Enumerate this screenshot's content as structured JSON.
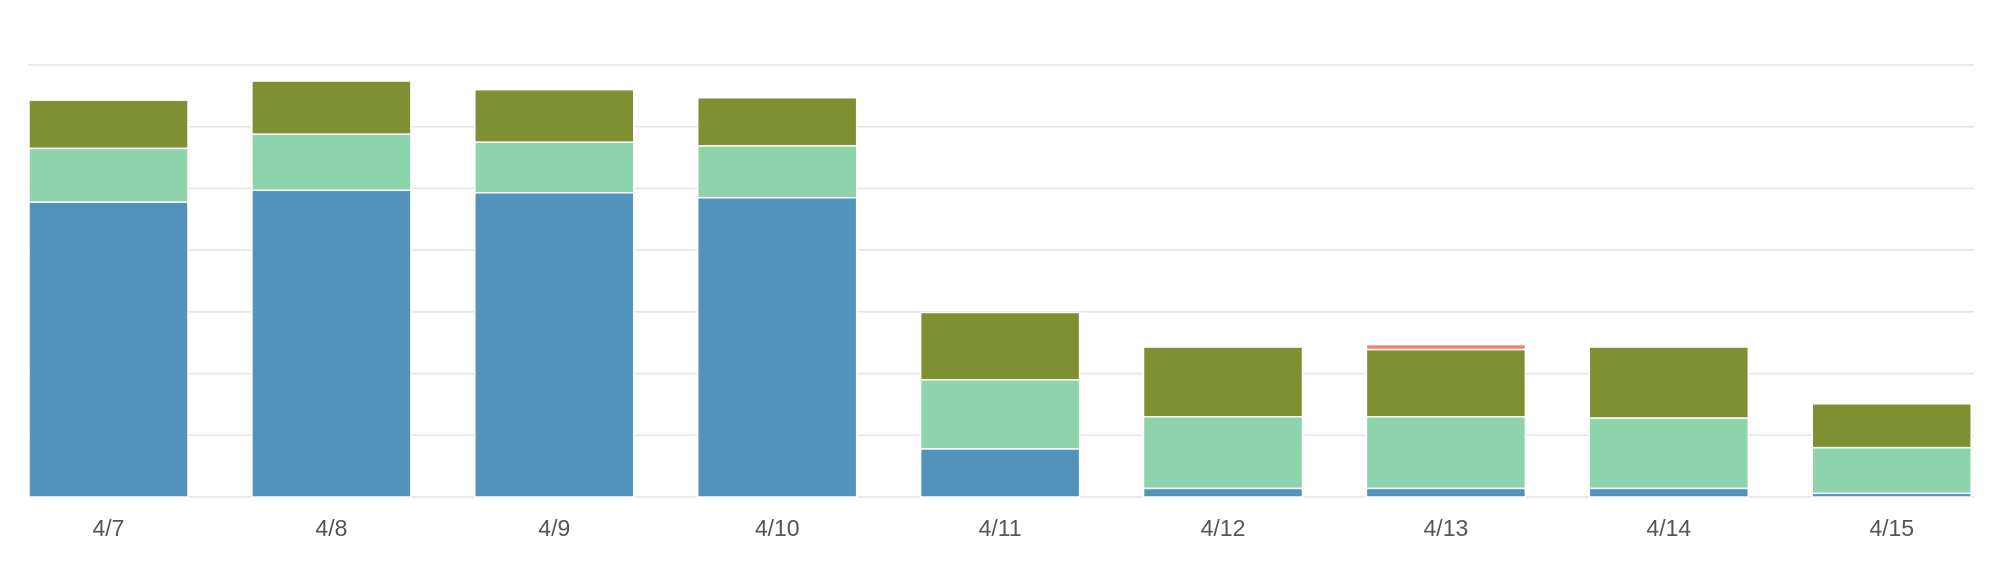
{
  "chart_data": {
    "type": "stacked_bar",
    "categories": [
      "4/7",
      "4/8",
      "4/9",
      "4/10",
      "4/11",
      "4/12",
      "4/13",
      "4/14",
      "4/15"
    ],
    "series": [
      {
        "color": "#5393bb",
        "values": [
          4.78,
          4.97,
          4.93,
          4.85,
          0.78,
          0.14,
          0.14,
          0.14,
          0.06
        ]
      },
      {
        "color": "#8dd3ac",
        "values": [
          0.87,
          0.91,
          0.82,
          0.84,
          1.12,
          1.16,
          1.16,
          1.14,
          0.74
        ]
      },
      {
        "color": "#7f9033",
        "values": [
          0.78,
          0.86,
          0.85,
          0.78,
          1.09,
          1.13,
          1.09,
          1.15,
          0.71
        ]
      },
      {
        "color": "#e8837a",
        "values": [
          0,
          0,
          0,
          0,
          0,
          0,
          0.08,
          0,
          0
        ]
      }
    ],
    "ylim": [
      0,
      7
    ],
    "yticks": [
      0,
      1,
      2,
      3,
      4,
      5,
      6,
      7
    ],
    "grid": true
  }
}
